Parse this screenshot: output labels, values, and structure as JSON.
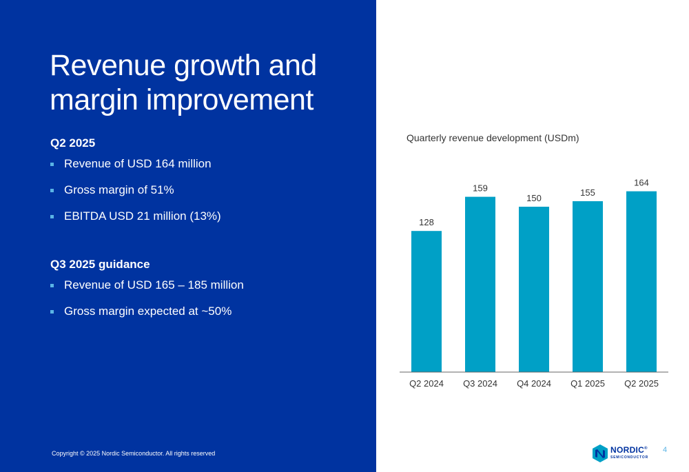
{
  "slide": {
    "title_line1": "Revenue growth and",
    "title_line2": "margin improvement",
    "q2_heading": "Q2 2025",
    "q2_bullets": [
      "Revenue of USD 164 million",
      "Gross margin of 51%",
      "EBITDA USD 21 million (13%)"
    ],
    "q3_heading": "Q3 2025 guidance",
    "q3_bullets": [
      "Revenue of USD 165 – 185 million",
      "Gross margin expected at ~50%"
    ],
    "copyright": "Copyright © 2025 Nordic Semiconductor. All rights reserved",
    "page_number": "4",
    "logo_text": "NORDIC",
    "logo_registered": "®",
    "logo_sub": "SEMICONDUCTOR"
  },
  "colors": {
    "panel": "#0033a0",
    "bar": "#00a0c6",
    "bullet": "#5ab4e5",
    "axis": "#666666"
  },
  "chart_data": {
    "type": "bar",
    "title": "Quarterly revenue development (USDm)",
    "categories": [
      "Q2 2024",
      "Q3 2024",
      "Q4 2024",
      "Q1 2025",
      "Q2 2025"
    ],
    "values": [
      128,
      159,
      150,
      155,
      164
    ],
    "xlabel": "",
    "ylabel": "",
    "ylim": [
      0,
      175
    ],
    "grid": false,
    "data_labels": true
  }
}
